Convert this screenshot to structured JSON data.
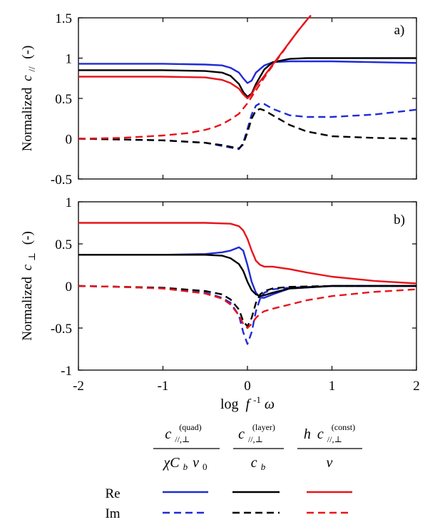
{
  "chart_data": [
    {
      "type": "line",
      "panel_label": "a)",
      "ylabel_prefix": "Normalized",
      "ylabel_symbol": "c",
      "ylabel_subscript": "//",
      "ylabel_suffix": "(-)",
      "xlim": [
        -2,
        2
      ],
      "ylim": [
        -0.5,
        1.5
      ],
      "xticks": [
        -2,
        -1,
        0,
        1,
        2
      ],
      "yticks": [
        -0.5,
        0,
        0.5,
        1,
        1.5
      ],
      "ytick_labels": [
        "-0.5",
        "0",
        "0.5",
        "1",
        "1.5"
      ],
      "grid": false,
      "series": [
        {
          "color": "#1f2bd6",
          "dash": false,
          "x": [
            -2,
            -1.5,
            -1,
            -0.5,
            -0.3,
            -0.2,
            -0.1,
            -0.05,
            0,
            0.05,
            0.1,
            0.2,
            0.3,
            0.5,
            1,
            1.5,
            2
          ],
          "y": [
            0.93,
            0.93,
            0.93,
            0.92,
            0.91,
            0.88,
            0.82,
            0.75,
            0.69,
            0.72,
            0.82,
            0.91,
            0.95,
            0.96,
            0.96,
            0.95,
            0.94
          ]
        },
        {
          "color": "#1f2bd6",
          "dash": true,
          "x": [
            -2,
            -1.5,
            -1,
            -0.5,
            -0.3,
            -0.2,
            -0.15,
            -0.1,
            -0.05,
            0,
            0.05,
            0.1,
            0.15,
            0.2,
            0.3,
            0.5,
            0.7,
            1,
            1.5,
            2
          ],
          "y": [
            0.0,
            -0.01,
            -0.02,
            -0.05,
            -0.09,
            -0.11,
            -0.12,
            -0.13,
            -0.05,
            0.12,
            0.3,
            0.41,
            0.44,
            0.43,
            0.37,
            0.29,
            0.27,
            0.27,
            0.3,
            0.36
          ]
        },
        {
          "color": "#000000",
          "dash": false,
          "x": [
            -2,
            -1.5,
            -1,
            -0.5,
            -0.3,
            -0.2,
            -0.1,
            -0.05,
            0,
            0.05,
            0.1,
            0.2,
            0.3,
            0.5,
            0.7,
            1,
            1.5,
            2
          ],
          "y": [
            0.85,
            0.85,
            0.85,
            0.84,
            0.82,
            0.78,
            0.68,
            0.58,
            0.52,
            0.56,
            0.68,
            0.86,
            0.95,
            0.99,
            1.0,
            1.0,
            1.0,
            1.0
          ]
        },
        {
          "color": "#000000",
          "dash": true,
          "x": [
            -2,
            -1.5,
            -1,
            -0.5,
            -0.3,
            -0.2,
            -0.15,
            -0.1,
            -0.05,
            0,
            0.05,
            0.1,
            0.15,
            0.2,
            0.3,
            0.5,
            0.7,
            1,
            1.5,
            2
          ],
          "y": [
            0.0,
            -0.01,
            -0.02,
            -0.05,
            -0.08,
            -0.1,
            -0.11,
            -0.12,
            -0.07,
            0.08,
            0.25,
            0.35,
            0.37,
            0.35,
            0.29,
            0.17,
            0.09,
            0.03,
            0.01,
            0.0
          ]
        },
        {
          "color": "#e8141b",
          "dash": false,
          "x": [
            -2,
            -1.5,
            -1,
            -0.5,
            -0.3,
            -0.2,
            -0.1,
            -0.05,
            0,
            0.05,
            0.1,
            0.2,
            0.3,
            0.4,
            0.5,
            0.6,
            0.7,
            0.75
          ],
          "y": [
            0.77,
            0.77,
            0.77,
            0.76,
            0.73,
            0.69,
            0.62,
            0.55,
            0.5,
            0.55,
            0.65,
            0.78,
            0.92,
            1.06,
            1.2,
            1.34,
            1.47,
            1.53
          ]
        },
        {
          "color": "#e8141b",
          "dash": true,
          "x": [
            -2,
            -1.5,
            -1,
            -0.7,
            -0.5,
            -0.4,
            -0.3,
            -0.2,
            -0.1,
            0,
            0.1,
            0.2,
            0.3,
            0.4,
            0.5,
            0.6,
            0.7,
            0.75
          ],
          "y": [
            0.0,
            0.01,
            0.04,
            0.07,
            0.11,
            0.14,
            0.18,
            0.24,
            0.31,
            0.44,
            0.6,
            0.76,
            0.91,
            1.05,
            1.2,
            1.34,
            1.47,
            1.53
          ]
        }
      ]
    },
    {
      "type": "line",
      "panel_label": "b)",
      "ylabel_prefix": "Normalized",
      "ylabel_symbol": "c",
      "ylabel_subscript": "⊥",
      "ylabel_suffix": "(-)",
      "xlabel": "log f⁻¹ω",
      "xlabel_prefix": "log",
      "xlabel_symbol": "f",
      "xlabel_superscript": "-1",
      "xlabel_tail": "ω",
      "xlim": [
        -2,
        2
      ],
      "ylim": [
        -1,
        1
      ],
      "xticks": [
        -2,
        -1,
        0,
        1,
        2
      ],
      "xtick_labels": [
        "-2",
        "-1",
        "0",
        "1",
        "2"
      ],
      "yticks": [
        -1,
        -0.5,
        0,
        0.5,
        1
      ],
      "ytick_labels": [
        "-1",
        "-0.5",
        "0",
        "0.5",
        "1"
      ],
      "grid": false,
      "series": [
        {
          "color": "#1f2bd6",
          "dash": false,
          "x": [
            -2,
            -1.5,
            -1,
            -0.5,
            -0.3,
            -0.2,
            -0.1,
            -0.05,
            0,
            0.05,
            0.1,
            0.15,
            0.2,
            0.3,
            0.5,
            1,
            1.5,
            2
          ],
          "y": [
            0.37,
            0.37,
            0.37,
            0.38,
            0.4,
            0.42,
            0.46,
            0.42,
            0.25,
            0.05,
            -0.08,
            -0.14,
            -0.14,
            -0.1,
            -0.03,
            0.0,
            0.0,
            0.0
          ]
        },
        {
          "color": "#1f2bd6",
          "dash": true,
          "x": [
            -2,
            -1.5,
            -1,
            -0.5,
            -0.3,
            -0.2,
            -0.1,
            -0.05,
            0,
            0.05,
            0.1,
            0.15,
            0.2,
            0.3,
            0.5,
            1,
            1.5,
            2
          ],
          "y": [
            0.0,
            -0.01,
            -0.03,
            -0.08,
            -0.14,
            -0.2,
            -0.35,
            -0.55,
            -0.69,
            -0.55,
            -0.3,
            -0.15,
            -0.08,
            -0.04,
            -0.02,
            0.0,
            0.0,
            0.0
          ]
        },
        {
          "color": "#000000",
          "dash": false,
          "x": [
            -2,
            -1.5,
            -1,
            -0.5,
            -0.3,
            -0.2,
            -0.1,
            -0.05,
            0,
            0.05,
            0.1,
            0.15,
            0.2,
            0.3,
            0.5,
            1,
            1.5,
            2
          ],
          "y": [
            0.37,
            0.37,
            0.37,
            0.37,
            0.36,
            0.33,
            0.26,
            0.18,
            0.05,
            -0.05,
            -0.1,
            -0.12,
            -0.11,
            -0.08,
            -0.03,
            0.0,
            0.0,
            0.0
          ]
        },
        {
          "color": "#000000",
          "dash": true,
          "x": [
            -2,
            -1.5,
            -1,
            -0.5,
            -0.3,
            -0.2,
            -0.1,
            -0.05,
            0,
            0.05,
            0.1,
            0.15,
            0.2,
            0.3,
            0.5,
            1,
            1.5,
            2
          ],
          "y": [
            0.0,
            -0.01,
            -0.02,
            -0.06,
            -0.1,
            -0.16,
            -0.28,
            -0.42,
            -0.48,
            -0.38,
            -0.2,
            -0.1,
            -0.06,
            -0.03,
            -0.01,
            0.0,
            0.0,
            0.0
          ]
        },
        {
          "color": "#e8141b",
          "dash": false,
          "x": [
            -2,
            -1.5,
            -1,
            -0.5,
            -0.2,
            -0.1,
            -0.05,
            0,
            0.05,
            0.1,
            0.15,
            0.2,
            0.3,
            0.5,
            0.7,
            1,
            1.5,
            2
          ],
          "y": [
            0.75,
            0.75,
            0.75,
            0.75,
            0.74,
            0.71,
            0.66,
            0.56,
            0.42,
            0.3,
            0.25,
            0.23,
            0.23,
            0.2,
            0.16,
            0.11,
            0.06,
            0.03
          ]
        },
        {
          "color": "#e8141b",
          "dash": true,
          "x": [
            -2,
            -1.5,
            -1,
            -0.5,
            -0.3,
            -0.2,
            -0.1,
            -0.05,
            0,
            0.05,
            0.1,
            0.15,
            0.2,
            0.3,
            0.5,
            0.7,
            1,
            1.5,
            2
          ],
          "y": [
            0.0,
            -0.01,
            -0.03,
            -0.09,
            -0.15,
            -0.22,
            -0.35,
            -0.45,
            -0.5,
            -0.45,
            -0.38,
            -0.33,
            -0.3,
            -0.27,
            -0.22,
            -0.17,
            -0.12,
            -0.07,
            -0.04
          ]
        }
      ]
    }
  ],
  "legend": {
    "columns": [
      {
        "color": "#1f2bd6",
        "num_sym": "c",
        "num_sub": "//,⊥",
        "num_sup": "(quad)",
        "den": "χC",
        "den_sub_b": "b",
        "den_mid": "v",
        "den_sub_0": "0"
      },
      {
        "color": "#000000",
        "num_sym": "c",
        "num_sub": "//,⊥",
        "num_sup": "(layer)",
        "den": "c",
        "den_sub_b": "b"
      },
      {
        "color": "#e8141b",
        "num_pre": "h",
        "num_sym": "c",
        "num_sub": "//,⊥",
        "num_sup": "(const)",
        "den": "ν"
      }
    ],
    "rows": [
      {
        "label": "Re",
        "dash": false
      },
      {
        "label": "Im",
        "dash": true
      }
    ]
  }
}
